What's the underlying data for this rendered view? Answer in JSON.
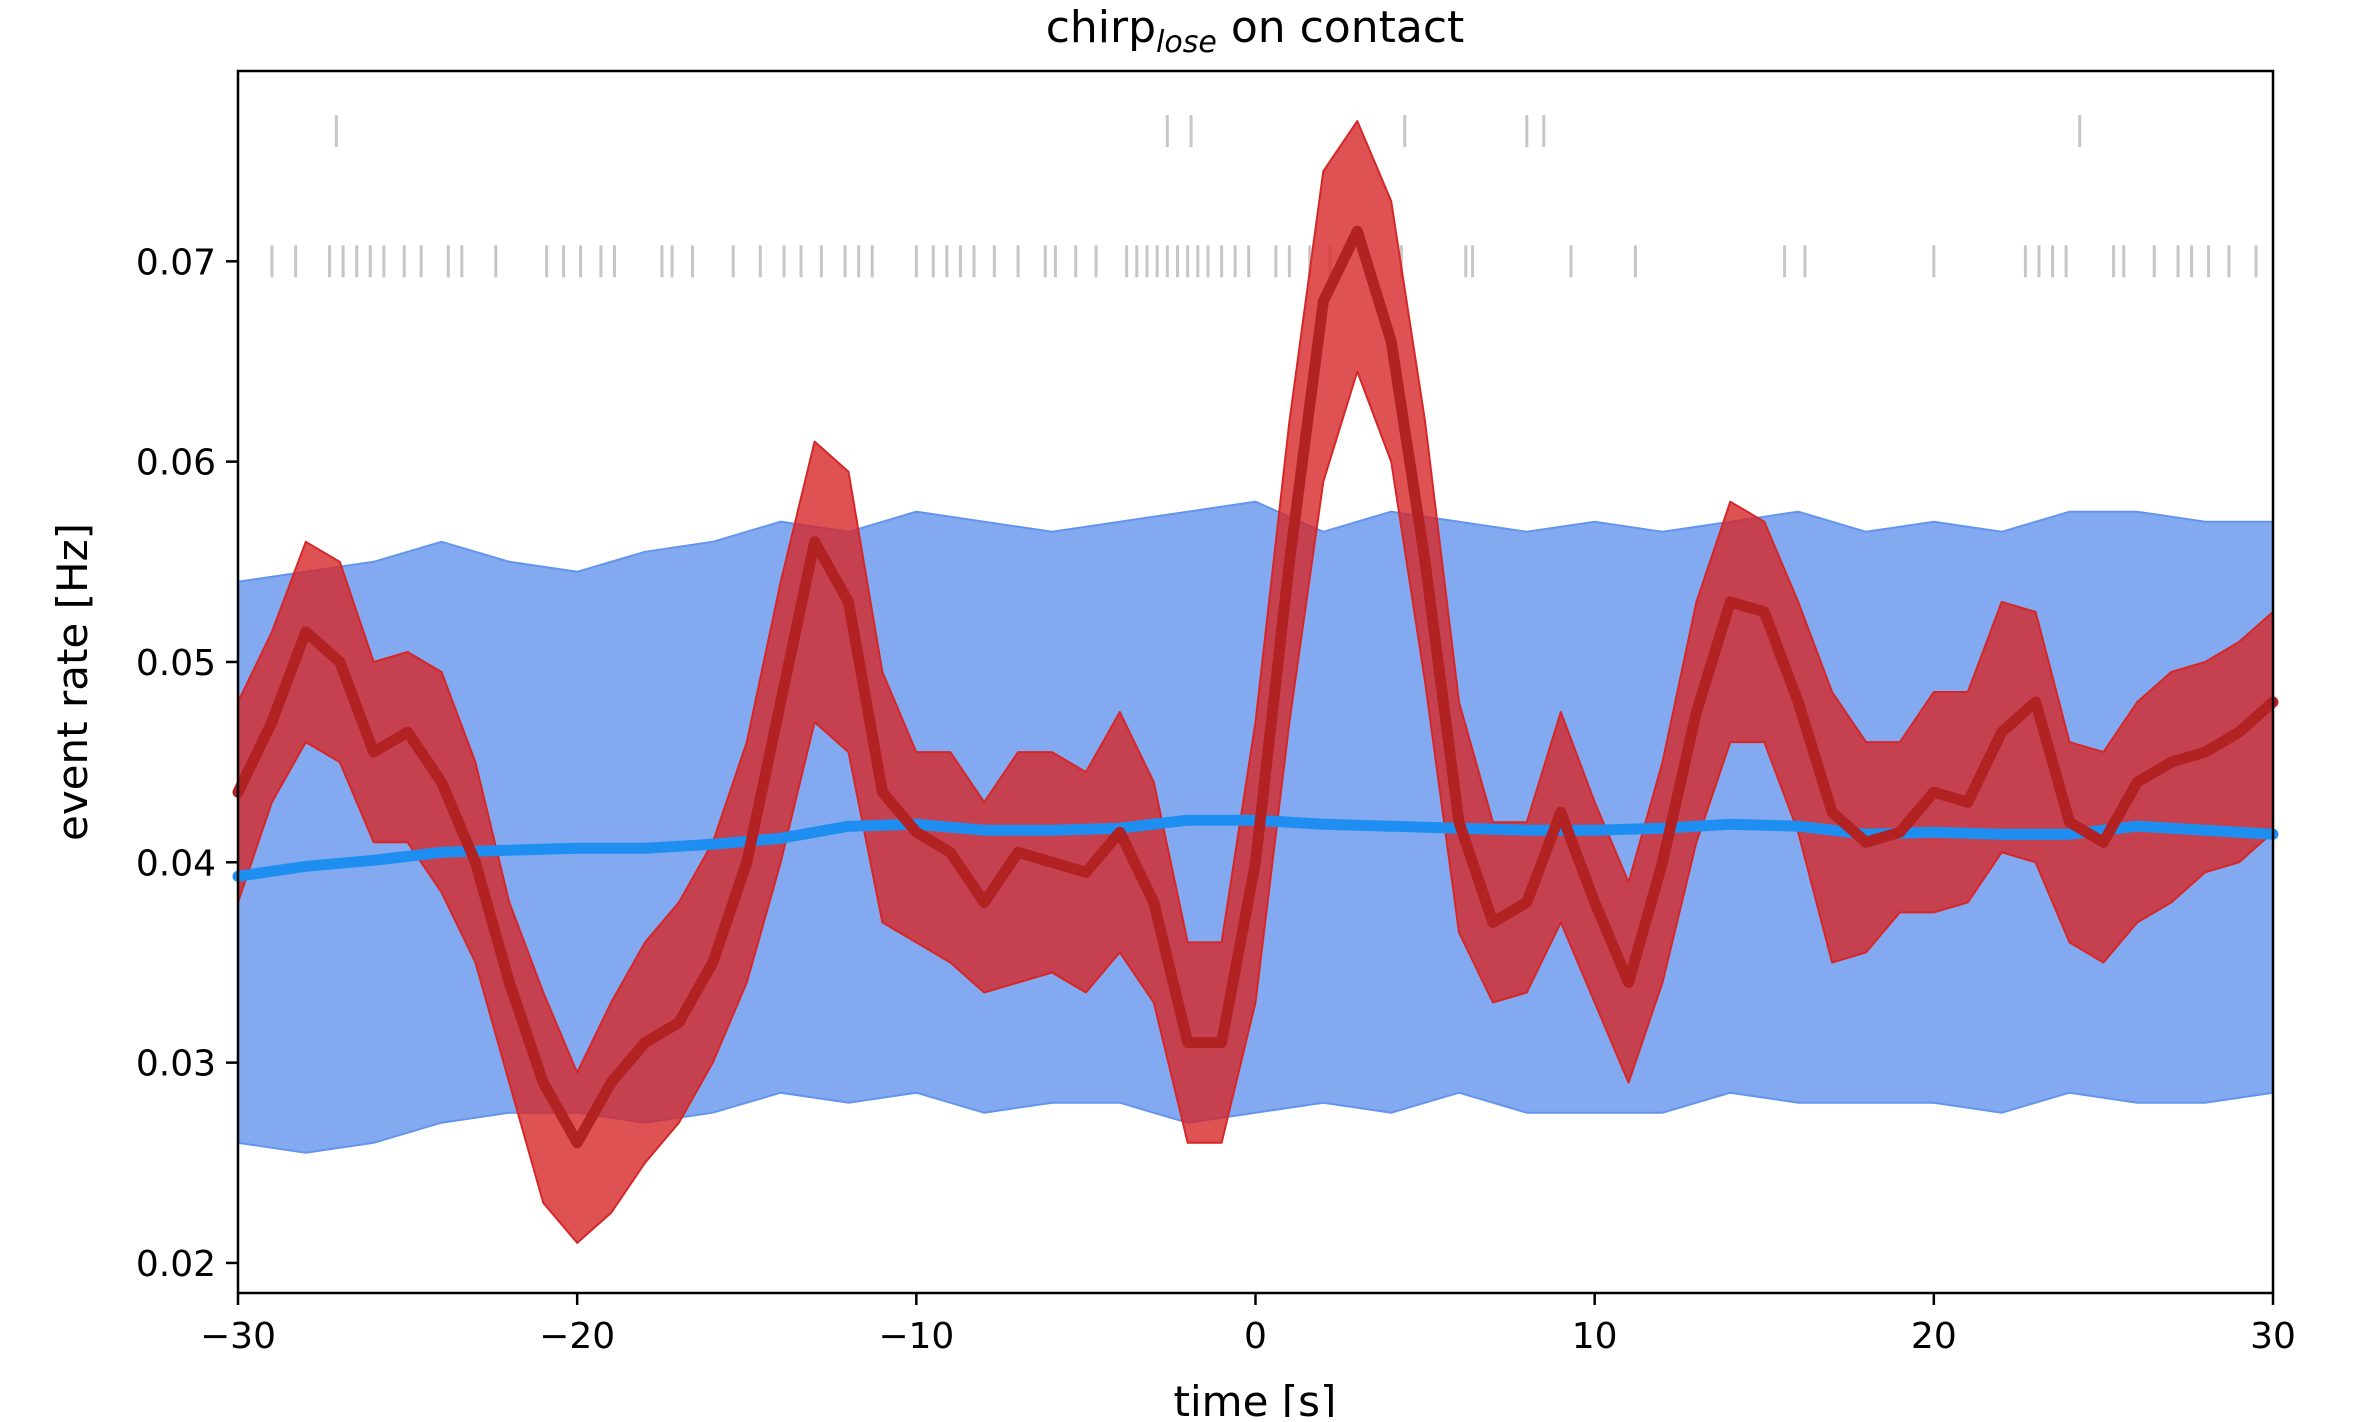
{
  "chart_data": {
    "type": "line",
    "title": "chirp",
    "title_subscript": "lose",
    "title_suffix": " on contact",
    "xlabel": "time [s]",
    "ylabel": "event rate [Hz]",
    "xlim": [
      -30,
      30
    ],
    "ylim": [
      0.0185,
      0.0795
    ],
    "xticks": [
      -30,
      -20,
      -10,
      0,
      10,
      20,
      30
    ],
    "xtick_labels": [
      "−30",
      "−20",
      "−10",
      "0",
      "10",
      "20",
      "30"
    ],
    "yticks": [
      0.02,
      0.03,
      0.04,
      0.05,
      0.06,
      0.07
    ],
    "ytick_labels": [
      "0.02",
      "0.03",
      "0.04",
      "0.05",
      "0.06",
      "0.07"
    ],
    "grid": false,
    "colors": {
      "observed_line": "#b22222",
      "observed_band": "#d62728",
      "baseline_line": "#1f8ef1",
      "baseline_band": "#6495ed",
      "raster": "#808080"
    },
    "series": [
      {
        "role": "observed",
        "x": [
          -30,
          -29,
          -28,
          -27,
          -26,
          -25,
          -24,
          -23,
          -22,
          -21,
          -20,
          -19,
          -18,
          -17,
          -16,
          -15,
          -14,
          -13,
          -12,
          -11,
          -10,
          -9,
          -8,
          -7,
          -6,
          -5,
          -4,
          -3,
          -2,
          -1,
          0,
          1,
          2,
          3,
          4,
          5,
          6,
          7,
          8,
          9,
          10,
          11,
          12,
          13,
          14,
          15,
          16,
          17,
          18,
          19,
          20,
          21,
          22,
          23,
          24,
          25,
          26,
          27,
          28,
          29,
          30
        ],
        "y": [
          0.0435,
          0.047,
          0.0515,
          0.05,
          0.0455,
          0.0465,
          0.044,
          0.04,
          0.034,
          0.029,
          0.026,
          0.029,
          0.031,
          0.032,
          0.035,
          0.04,
          0.048,
          0.056,
          0.053,
          0.0435,
          0.0415,
          0.0405,
          0.038,
          0.0405,
          0.04,
          0.0395,
          0.0415,
          0.038,
          0.031,
          0.031,
          0.04,
          0.055,
          0.068,
          0.0715,
          0.066,
          0.055,
          0.042,
          0.037,
          0.038,
          0.0425,
          0.038,
          0.034,
          0.04,
          0.0475,
          0.053,
          0.0525,
          0.048,
          0.0425,
          0.041,
          0.0415,
          0.0435,
          0.043,
          0.0465,
          0.048,
          0.042,
          0.041,
          0.044,
          0.045,
          0.0455,
          0.0465,
          0.048
        ],
        "y_lower": [
          0.038,
          0.043,
          0.046,
          0.045,
          0.041,
          0.041,
          0.0385,
          0.035,
          0.029,
          0.023,
          0.021,
          0.0225,
          0.025,
          0.027,
          0.03,
          0.034,
          0.04,
          0.047,
          0.0455,
          0.037,
          0.036,
          0.035,
          0.0335,
          0.034,
          0.0345,
          0.0335,
          0.0355,
          0.033,
          0.026,
          0.026,
          0.033,
          0.047,
          0.059,
          0.0645,
          0.06,
          0.049,
          0.0365,
          0.033,
          0.0335,
          0.037,
          0.033,
          0.029,
          0.034,
          0.041,
          0.046,
          0.046,
          0.0415,
          0.035,
          0.0355,
          0.0375,
          0.0375,
          0.038,
          0.0405,
          0.04,
          0.036,
          0.035,
          0.037,
          0.038,
          0.0395,
          0.04,
          0.0415
        ],
        "y_upper": [
          0.048,
          0.0515,
          0.056,
          0.055,
          0.05,
          0.0505,
          0.0495,
          0.045,
          0.038,
          0.0335,
          0.0295,
          0.033,
          0.036,
          0.038,
          0.041,
          0.046,
          0.054,
          0.061,
          0.0595,
          0.0495,
          0.0455,
          0.0455,
          0.043,
          0.0455,
          0.0455,
          0.0445,
          0.0475,
          0.044,
          0.036,
          0.036,
          0.047,
          0.062,
          0.0745,
          0.077,
          0.073,
          0.062,
          0.048,
          0.042,
          0.042,
          0.0475,
          0.043,
          0.039,
          0.045,
          0.053,
          0.058,
          0.057,
          0.053,
          0.0485,
          0.046,
          0.046,
          0.0485,
          0.0485,
          0.053,
          0.0525,
          0.046,
          0.0455,
          0.048,
          0.0495,
          0.05,
          0.051,
          0.0525
        ]
      },
      {
        "role": "baseline",
        "x": [
          -30,
          -28,
          -26,
          -24,
          -22,
          -20,
          -18,
          -16,
          -14,
          -12,
          -10,
          -8,
          -6,
          -4,
          -2,
          0,
          2,
          4,
          6,
          8,
          10,
          12,
          14,
          16,
          18,
          20,
          22,
          24,
          26,
          28,
          30
        ],
        "y": [
          0.0393,
          0.0398,
          0.0401,
          0.0405,
          0.0406,
          0.0407,
          0.0407,
          0.0409,
          0.0412,
          0.0418,
          0.0419,
          0.0416,
          0.0416,
          0.0417,
          0.0421,
          0.0421,
          0.0419,
          0.0418,
          0.0417,
          0.0416,
          0.0416,
          0.0417,
          0.0419,
          0.0418,
          0.0414,
          0.0415,
          0.0414,
          0.0414,
          0.0418,
          0.0416,
          0.0414
        ],
        "y_lower": [
          0.026,
          0.0255,
          0.026,
          0.027,
          0.0275,
          0.0275,
          0.027,
          0.0275,
          0.0285,
          0.028,
          0.0285,
          0.0275,
          0.028,
          0.028,
          0.027,
          0.0275,
          0.028,
          0.0275,
          0.0285,
          0.0275,
          0.0275,
          0.0275,
          0.0285,
          0.028,
          0.028,
          0.028,
          0.0275,
          0.0285,
          0.028,
          0.028,
          0.0285
        ],
        "y_upper": [
          0.054,
          0.0545,
          0.055,
          0.056,
          0.055,
          0.0545,
          0.0555,
          0.056,
          0.057,
          0.0565,
          0.0575,
          0.057,
          0.0565,
          0.057,
          0.0575,
          0.058,
          0.0565,
          0.0575,
          0.057,
          0.0565,
          0.057,
          0.0565,
          0.057,
          0.0575,
          0.0565,
          0.057,
          0.0565,
          0.0575,
          0.0575,
          0.057,
          0.057
        ]
      }
    ],
    "raster_rows": [
      {
        "y": 0.0765,
        "x": [
          -27.1,
          -2.6,
          -1.9,
          4.4,
          8.0,
          8.5,
          24.3
        ]
      },
      {
        "y": 0.07,
        "x": [
          -29.0,
          -28.3,
          -27.3,
          -26.9,
          -26.5,
          -26.1,
          -25.7,
          -25.1,
          -24.6,
          -23.8,
          -23.4,
          -22.4,
          -20.9,
          -20.4,
          -19.9,
          -19.3,
          -18.9,
          -17.5,
          -17.2,
          -16.6,
          -15.4,
          -14.6,
          -13.9,
          -13.4,
          -12.8,
          -12.1,
          -11.7,
          -11.3,
          -10.0,
          -9.5,
          -9.1,
          -8.7,
          -8.3,
          -7.7,
          -7.0,
          -6.2,
          -5.9,
          -5.3,
          -4.7,
          -3.8,
          -3.5,
          -3.2,
          -2.9,
          -2.6,
          -2.3,
          -2.0,
          -1.7,
          -1.4,
          -1.0,
          -0.6,
          -0.2,
          0.6,
          1.0,
          1.6,
          2.2,
          4.3,
          6.2,
          6.4,
          9.3,
          11.2,
          15.6,
          16.2,
          20.0,
          22.7,
          23.1,
          23.5,
          23.9,
          25.3,
          25.6,
          26.5,
          27.2,
          27.6,
          28.1,
          28.7,
          29.5
        ]
      }
    ]
  }
}
